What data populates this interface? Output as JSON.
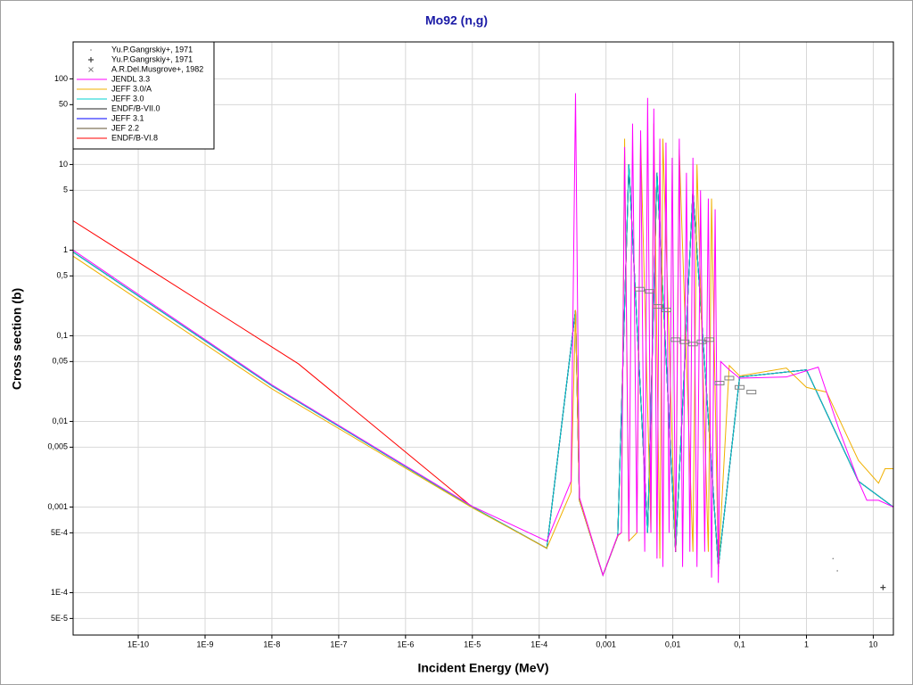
{
  "chart_data": {
    "type": "line",
    "title": "Mo92 (n,g)",
    "x_label": "Incident Energy (MeV)",
    "y_label": "Cross section (b)",
    "xscale": "log",
    "yscale": "log",
    "grid": true,
    "legend_position": "upper-left",
    "xlim": [
      1.06e-11,
      20
    ],
    "ylim": [
      3.2e-05,
      270
    ],
    "xticks": [
      {
        "value": 1e-10,
        "label": "1E-10"
      },
      {
        "value": 1e-09,
        "label": "1E-9"
      },
      {
        "value": 1e-08,
        "label": "1E-8"
      },
      {
        "value": 1e-07,
        "label": "1E-7"
      },
      {
        "value": 1e-06,
        "label": "1E-6"
      },
      {
        "value": 1e-05,
        "label": "1E-5"
      },
      {
        "value": 0.0001,
        "label": "1E-4"
      },
      {
        "value": 0.001,
        "label": "0,001"
      },
      {
        "value": 0.01,
        "label": "0,01"
      },
      {
        "value": 0.1,
        "label": "0,1"
      },
      1,
      10
    ],
    "yticks": [
      100,
      50,
      10,
      5,
      1,
      {
        "value": 0.5,
        "label": "0,5"
      },
      {
        "value": 0.1,
        "label": "0,1"
      },
      {
        "value": 0.05,
        "label": "0,05"
      },
      {
        "value": 0.01,
        "label": "0,01"
      },
      {
        "value": 0.005,
        "label": "0,005"
      },
      {
        "value": 0.001,
        "label": "0,001"
      },
      {
        "value": 0.0005,
        "label": "5E-4"
      },
      {
        "value": 0.0001,
        "label": "1E-4"
      },
      {
        "value": 5e-05,
        "label": "5E-5"
      }
    ],
    "series": [
      {
        "name": "Yu.P.Gangrskiy+, 1971",
        "type": "scatter",
        "marker": "dot",
        "color": "#808080",
        "x": [
          2.5,
          2.9
        ],
        "values": [
          0.00025,
          0.00018
        ]
      },
      {
        "name": "Yu.P.Gangrskiy+, 1971",
        "type": "scatter",
        "marker": "plus",
        "color": "#404040",
        "x": [
          14
        ],
        "values": [
          0.000115
        ]
      },
      {
        "name": "A.R.Del.Musgrove+, 1982",
        "type": "scatter",
        "marker": "cross",
        "color": "#808080",
        "x": [
          0.0032,
          0.0045,
          0.006,
          0.008,
          0.011,
          0.015,
          0.02,
          0.027,
          0.035,
          0.05,
          0.07,
          0.1,
          0.15
        ],
        "values": [
          0.35,
          0.33,
          0.22,
          0.2,
          0.09,
          0.085,
          0.08,
          0.085,
          0.09,
          0.028,
          0.032,
          0.025,
          0.022
        ]
      },
      {
        "name": "JENDL 3.3",
        "type": "line",
        "color": "#ff00ff",
        "x": [
          1.06e-11,
          1e-08,
          1e-05,
          0.00013,
          0.0003,
          0.00035,
          0.0004,
          0.0009,
          0.0015,
          0.0017,
          0.0019,
          0.0022,
          0.0025,
          0.0029,
          0.0033,
          0.0038,
          0.0042,
          0.0047,
          0.0052,
          0.0058,
          0.0064,
          0.0071,
          0.0079,
          0.0088,
          0.0098,
          0.011,
          0.0125,
          0.014,
          0.016,
          0.018,
          0.02,
          0.023,
          0.026,
          0.03,
          0.034,
          0.038,
          0.043,
          0.048,
          0.052,
          0.07,
          0.1,
          0.5,
          1.5,
          3,
          6,
          8,
          12,
          20
        ],
        "values": [
          1.0,
          0.0267,
          0.00102,
          0.0004,
          0.002,
          68,
          0.0013,
          0.00016,
          0.00047,
          0.0005,
          16,
          0.0004,
          30,
          0.0005,
          25,
          0.0003,
          60,
          0.0005,
          45,
          0.00025,
          20,
          0.0002,
          18,
          0.0005,
          12,
          0.0003,
          20,
          0.0002,
          8,
          0.0003,
          12,
          0.0002,
          5,
          0.0003,
          4,
          0.00015,
          3,
          0.00013,
          0.05,
          0.04,
          0.032,
          0.033,
          0.043,
          0.0085,
          0.002,
          0.0012,
          0.0012,
          0.001
        ]
      },
      {
        "name": "JEFF 3.0/A",
        "type": "line",
        "color": "#f0b000",
        "x": [
          1.06e-11,
          1e-08,
          1e-05,
          0.00013,
          0.0003,
          0.00035,
          0.0004,
          0.0009,
          0.0015,
          0.0017,
          0.0019,
          0.0022,
          0.0029,
          0.0033,
          0.0047,
          0.0052,
          0.0064,
          0.0071,
          0.011,
          0.0125,
          0.02,
          0.023,
          0.034,
          0.038,
          0.048,
          0.07,
          0.1,
          0.5,
          1,
          2,
          6,
          12,
          15,
          20
        ],
        "values": [
          0.85,
          0.024,
          0.00098,
          0.00033,
          0.0015,
          0.2,
          0.0012,
          0.00016,
          0.00046,
          0.0005,
          20,
          0.0004,
          0.0005,
          20,
          0.0005,
          30,
          0.00025,
          20,
          0.0003,
          15,
          0.0003,
          10,
          0.0003,
          4,
          0.0002,
          0.045,
          0.034,
          0.042,
          0.025,
          0.022,
          0.0035,
          0.0019,
          0.0028,
          0.0028
        ]
      },
      {
        "name": "JEFF 3.0",
        "type": "line",
        "color": "#00d0d0",
        "x": [
          1.06e-11,
          1e-08,
          1e-05,
          0.00013,
          0.00035,
          0.0004,
          0.0009,
          0.0015,
          0.0022,
          0.0042,
          0.0058,
          0.011,
          0.02,
          0.048,
          0.1,
          1,
          6,
          20
        ],
        "values": [
          0.95,
          0.026,
          0.001,
          0.00033,
          0.2,
          0.0012,
          0.00016,
          0.00046,
          10,
          0.0005,
          8,
          0.0003,
          5,
          0.0002,
          0.033,
          0.04,
          0.002,
          0.001
        ]
      },
      {
        "name": "ENDF/B-VII.0",
        "type": "line",
        "color": "#202020",
        "x": [
          1.06e-11,
          1e-08,
          1e-05,
          0.00013,
          0.00035,
          0.0004,
          0.0009,
          0.0015,
          0.0022,
          0.0042,
          0.0058,
          0.011,
          0.02,
          0.048,
          0.1,
          1,
          6,
          20
        ],
        "values": [
          0.95,
          0.026,
          0.001,
          0.00033,
          0.2,
          0.0012,
          0.00016,
          0.00046,
          10,
          0.0005,
          8,
          0.0003,
          5,
          0.0002,
          0.033,
          0.04,
          0.002,
          0.001
        ]
      },
      {
        "name": "JEFF 3.1",
        "type": "line",
        "color": "#0000ff",
        "x": [
          1.06e-11,
          1e-08,
          1e-05,
          0.00013,
          0.00035,
          0.0004,
          0.0009,
          0.0015,
          0.0022,
          0.0042,
          0.0058,
          0.011,
          0.02,
          0.048,
          0.1,
          1,
          6,
          20
        ],
        "values": [
          0.95,
          0.026,
          0.001,
          0.00033,
          0.2,
          0.0012,
          0.00016,
          0.00046,
          10,
          0.0005,
          8,
          0.0003,
          5,
          0.0002,
          0.033,
          0.04,
          0.002,
          0.001
        ]
      },
      {
        "name": "JEF 2.2",
        "type": "line",
        "color": "#605030",
        "x": [
          1.06e-11,
          1e-08,
          1e-05,
          0.00013,
          0.00035,
          0.0004,
          0.0009,
          0.0015,
          0.0022,
          0.0042,
          0.0058,
          0.011,
          0.02,
          0.048,
          0.1,
          1,
          6,
          20
        ],
        "values": [
          0.95,
          0.026,
          0.001,
          0.00033,
          0.2,
          0.0012,
          0.00016,
          0.00046,
          10,
          0.0005,
          8,
          0.0003,
          5,
          0.0002,
          0.033,
          0.04,
          0.002,
          0.001
        ]
      },
      {
        "name": "ENDF/B-VI.8",
        "type": "line",
        "color": "#ff0000",
        "x": [
          1.06e-11,
          2.5e-08,
          1e-05,
          0.00013,
          0.00035,
          0.0004,
          0.0009,
          0.0015,
          0.0022,
          0.0042,
          0.0058,
          0.011,
          0.02,
          0.048,
          0.1,
          1,
          6,
          20
        ],
        "values": [
          2.2,
          0.047,
          0.001,
          0.00033,
          0.2,
          0.0012,
          0.00016,
          0.00046,
          10,
          0.0005,
          8,
          0.0003,
          5,
          0.0002,
          0.033,
          0.04,
          0.002,
          0.001
        ]
      }
    ]
  }
}
